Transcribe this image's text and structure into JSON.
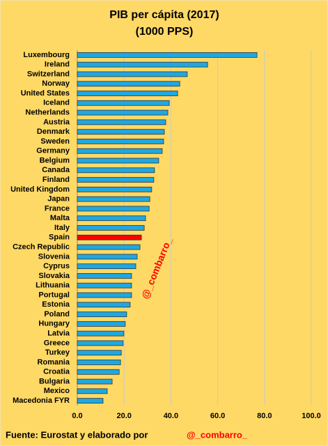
{
  "chart_data": {
    "type": "hbar",
    "title": "PIB per cápita (2017)",
    "subtitle": "(1000 PPS)",
    "categories": [
      "Luxembourg",
      "Ireland",
      "Switzerland",
      "Norway",
      "United States",
      "Iceland",
      "Netherlands",
      "Austria",
      "Denmark",
      "Sweden",
      "Germany",
      "Belgium",
      "Canada",
      "Finland",
      "United Kingdom",
      "Japan",
      "France",
      "Malta",
      "Italy",
      "Spain",
      "Czech Republic",
      "Slovenia",
      "Cyprus",
      "Slovakia",
      "Lithuania",
      "Portugal",
      "Estonia",
      "Poland",
      "Hungary",
      "Latvia",
      "Greece",
      "Turkey",
      "Romania",
      "Croatia",
      "Bulgaria",
      "Mexico",
      "Macedonia FYR"
    ],
    "values": [
      76.8,
      55.7,
      47,
      43.8,
      42.9,
      39.3,
      38.7,
      37.8,
      37.2,
      36.9,
      36.3,
      34.8,
      33,
      32.7,
      31.8,
      31,
      30.7,
      29.2,
      28.6,
      27.4,
      26.8,
      25.6,
      25,
      23.2,
      23.2,
      23.2,
      22.6,
      21.1,
      20.5,
      19.9,
      19.6,
      18.8,
      18.5,
      17.9,
      14.9,
      12.8,
      11
    ],
    "colors": [
      "#1fa8e0",
      "#1fa8e0",
      "#1fa8e0",
      "#1fa8e0",
      "#1fa8e0",
      "#1fa8e0",
      "#1fa8e0",
      "#1fa8e0",
      "#1fa8e0",
      "#1fa8e0",
      "#1fa8e0",
      "#1fa8e0",
      "#1fa8e0",
      "#1fa8e0",
      "#1fa8e0",
      "#1fa8e0",
      "#1fa8e0",
      "#1fa8e0",
      "#1fa8e0",
      "#ff0000",
      "#1fa8e0",
      "#1fa8e0",
      "#1fa8e0",
      "#1fa8e0",
      "#1fa8e0",
      "#1fa8e0",
      "#1fa8e0",
      "#1fa8e0",
      "#1fa8e0",
      "#1fa8e0",
      "#1fa8e0",
      "#1fa8e0",
      "#1fa8e0",
      "#1fa8e0",
      "#1fa8e0",
      "#1fa8e0",
      "#1fa8e0"
    ],
    "xlim": [
      0,
      100
    ],
    "xticks": [
      {
        "value": 0,
        "label": "0.0"
      },
      {
        "value": 20,
        "label": "20.0"
      },
      {
        "value": 40,
        "label": "40.0"
      },
      {
        "value": 60,
        "label": "60.0"
      },
      {
        "value": 80,
        "label": "80.0"
      },
      {
        "value": 100,
        "label": "100.0"
      }
    ],
    "grid": true,
    "watermark": "@_combarro_",
    "source": "Fuente: Eurostat y elaborado por",
    "credit": "@_combarro_"
  }
}
